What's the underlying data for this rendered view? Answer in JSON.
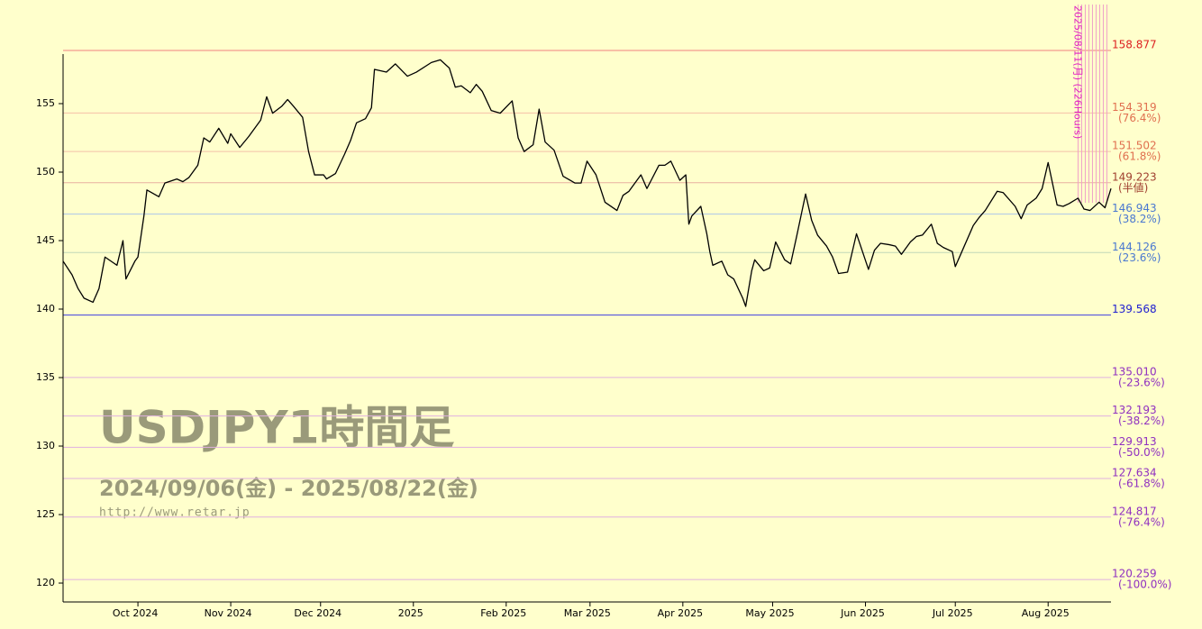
{
  "chart_data": {
    "type": "line",
    "title": "USDJPY1時間足",
    "subtitle": "2024/09/06(金) - 2025/08/22(金)",
    "source": "http://www.retar.jp",
    "annotation": "2025/08/11(月) (226Hours)",
    "color": "#000000",
    "xlim": [
      "2024/09/06",
      "2025/08/22"
    ],
    "xticks": [
      {
        "value": "2024/10/01",
        "label": "Oct 2024"
      },
      {
        "value": "2024/11/01",
        "label": "Nov 2024"
      },
      {
        "value": "2024/12/01",
        "label": "Dec 2024"
      },
      {
        "value": "2025/01/01",
        "label": "2025"
      },
      {
        "value": "2025/02/01",
        "label": "Feb 2025"
      },
      {
        "value": "2025/03/01",
        "label": "Mar 2025"
      },
      {
        "value": "2025/04/01",
        "label": "Apr 2025"
      },
      {
        "value": "2025/05/01",
        "label": "May 2025"
      },
      {
        "value": "2025/06/01",
        "label": "Jun 2025"
      },
      {
        "value": "2025/07/01",
        "label": "Jul 2025"
      },
      {
        "value": "2025/08/01",
        "label": "Aug 2025"
      }
    ],
    "ylim": [
      118.62,
      159.21
    ],
    "yticks": [
      120,
      125,
      130,
      135,
      140,
      145,
      150,
      155
    ],
    "levels": [
      {
        "value": 158.877,
        "label": "158.877",
        "color": "#dd2222",
        "line": "#f08080"
      },
      {
        "value": 154.319,
        "label": "154.319",
        "note": "(76.4%)",
        "color": "#e07050",
        "line": "#f4c0a8"
      },
      {
        "value": 151.502,
        "label": "151.502",
        "note": "(61.8%)",
        "color": "#e07050",
        "line": "#f4c0a8"
      },
      {
        "value": 149.223,
        "label": "149.223",
        "note": "(半値)",
        "color": "#a04030",
        "line": "#e8b0a0"
      },
      {
        "value": 146.943,
        "label": "146.943",
        "note": "(38.2%)",
        "color": "#4a78d0",
        "line": "#b0c8e8"
      },
      {
        "value": 144.126,
        "label": "144.126",
        "note": "(23.6%)",
        "color": "#4a78d0",
        "line": "#c0d8b8"
      },
      {
        "value": 139.568,
        "label": "139.568",
        "color": "#2020d0",
        "line": "#4040e0"
      },
      {
        "value": 135.01,
        "label": "135.010",
        "note": "(-23.6%)",
        "color": "#9030c0",
        "line": "#e0b0e0"
      },
      {
        "value": 132.193,
        "label": "132.193",
        "note": "(-38.2%)",
        "color": "#9030c0",
        "line": "#e0b0e0"
      },
      {
        "value": 129.913,
        "label": "129.913",
        "note": "(-50.0%)",
        "color": "#9030c0",
        "line": "#e0b0e0"
      },
      {
        "value": 127.634,
        "label": "127.634",
        "note": "(-61.8%)",
        "color": "#9030c0",
        "line": "#e0b0e0"
      },
      {
        "value": 124.817,
        "label": "124.817",
        "note": "(-76.4%)",
        "color": "#9030c0",
        "line": "#e0b0e0"
      },
      {
        "value": 120.259,
        "label": "120.259",
        "note": "(-100.0%)",
        "color": "#9030c0",
        "line": "#e0b0e0"
      }
    ],
    "x": [
      "2024/09/06",
      "2024/09/09",
      "2024/09/11",
      "2024/09/13",
      "2024/09/16",
      "2024/09/18",
      "2024/09/20",
      "2024/09/24",
      "2024/09/26",
      "2024/09/27",
      "2024/09/30",
      "2024/10/01",
      "2024/10/03",
      "2024/10/04",
      "2024/10/08",
      "2024/10/10",
      "2024/10/14",
      "2024/10/16",
      "2024/10/18",
      "2024/10/21",
      "2024/10/23",
      "2024/10/25",
      "2024/10/28",
      "2024/10/31",
      "2024/11/01",
      "2024/11/04",
      "2024/11/07",
      "2024/11/11",
      "2024/11/13",
      "2024/11/15",
      "2024/11/18",
      "2024/11/20",
      "2024/11/22",
      "2024/11/25",
      "2024/11/27",
      "2024/11/29",
      "2024/12/02",
      "2024/12/03",
      "2024/12/06",
      "2024/12/09",
      "2024/12/11",
      "2024/12/13",
      "2024/12/16",
      "2024/12/18",
      "2024/12/19",
      "2024/12/23",
      "2024/12/26",
      "2024/12/30",
      "2025/01/02",
      "2025/01/07",
      "2025/01/10",
      "2025/01/13",
      "2025/01/15",
      "2025/01/17",
      "2025/01/20",
      "2025/01/22",
      "2025/01/24",
      "2025/01/27",
      "2025/01/30",
      "2025/02/03",
      "2025/02/05",
      "2025/02/07",
      "2025/02/10",
      "2025/02/12",
      "2025/02/14",
      "2025/02/17",
      "2025/02/20",
      "2025/02/24",
      "2025/02/26",
      "2025/02/28",
      "2025/03/03",
      "2025/03/06",
      "2025/03/10",
      "2025/03/12",
      "2025/03/14",
      "2025/03/18",
      "2025/03/20",
      "2025/03/24",
      "2025/03/26",
      "2025/03/28",
      "2025/03/31",
      "2025/04/02",
      "2025/04/03",
      "2025/04/04",
      "2025/04/07",
      "2025/04/09",
      "2025/04/10",
      "2025/04/11",
      "2025/04/14",
      "2025/04/16",
      "2025/04/18",
      "2025/04/21",
      "2025/04/22",
      "2025/04/24",
      "2025/04/25",
      "2025/04/28",
      "2025/04/30",
      "2025/05/02",
      "2025/05/05",
      "2025/05/07",
      "2025/05/09",
      "2025/05/12",
      "2025/05/14",
      "2025/05/16",
      "2025/05/19",
      "2025/05/21",
      "2025/05/23",
      "2025/05/26",
      "2025/05/29",
      "2025/06/02",
      "2025/06/04",
      "2025/06/06",
      "2025/06/09",
      "2025/06/11",
      "2025/06/13",
      "2025/06/16",
      "2025/06/18",
      "2025/06/20",
      "2025/06/23",
      "2025/06/25",
      "2025/06/27",
      "2025/06/30",
      "2025/07/01",
      "2025/07/03",
      "2025/07/07",
      "2025/07/09",
      "2025/07/11",
      "2025/07/15",
      "2025/07/17",
      "2025/07/21",
      "2025/07/23",
      "2025/07/25",
      "2025/07/28",
      "2025/07/30",
      "2025/08/01",
      "2025/08/04",
      "2025/08/06",
      "2025/08/08",
      "2025/08/11",
      "2025/08/13",
      "2025/08/15",
      "2025/08/18",
      "2025/08/20",
      "2025/08/22"
    ],
    "values": [
      143.5,
      142.5,
      141.5,
      140.8,
      140.5,
      141.5,
      143.8,
      143.2,
      145,
      142.2,
      143.5,
      143.8,
      146.8,
      148.7,
      148.2,
      149.2,
      149.5,
      149.3,
      149.6,
      150.5,
      152.5,
      152.2,
      153.2,
      152.1,
      152.8,
      151.8,
      152.6,
      153.8,
      155.5,
      154.3,
      154.8,
      155.3,
      154.8,
      154,
      151.5,
      149.8,
      149.8,
      149.5,
      149.9,
      151.3,
      152.3,
      153.6,
      153.9,
      154.7,
      157.5,
      157.3,
      157.9,
      157,
      157.3,
      158,
      158.2,
      157.6,
      156.2,
      156.3,
      155.8,
      156.4,
      155.9,
      154.5,
      154.3,
      155.2,
      152.5,
      151.5,
      152,
      154.6,
      152.2,
      151.6,
      149.7,
      149.2,
      149.2,
      150.8,
      149.8,
      147.8,
      147.2,
      148.3,
      148.6,
      149.8,
      148.8,
      150.5,
      150.5,
      150.8,
      149.4,
      149.8,
      146.2,
      146.8,
      147.5,
      145.5,
      144.2,
      143.2,
      143.5,
      142.5,
      142.2,
      140.8,
      140.2,
      142.8,
      143.6,
      142.8,
      143,
      144.9,
      143.6,
      143.3,
      145.3,
      148.4,
      146.5,
      145.4,
      144.6,
      143.8,
      142.6,
      142.7,
      145.5,
      142.9,
      144.3,
      144.8,
      144.7,
      144.6,
      144,
      144.9,
      145.3,
      145.4,
      146.2,
      144.8,
      144.5,
      144.2,
      143.1,
      144.1,
      146.1,
      146.7,
      147.2,
      148.6,
      148.5,
      147.5,
      146.6,
      147.6,
      148.1,
      148.8,
      150.7,
      147.6,
      147.5,
      147.7,
      148.1,
      147.3,
      147.2,
      147.8,
      147.4,
      148.8
    ]
  }
}
